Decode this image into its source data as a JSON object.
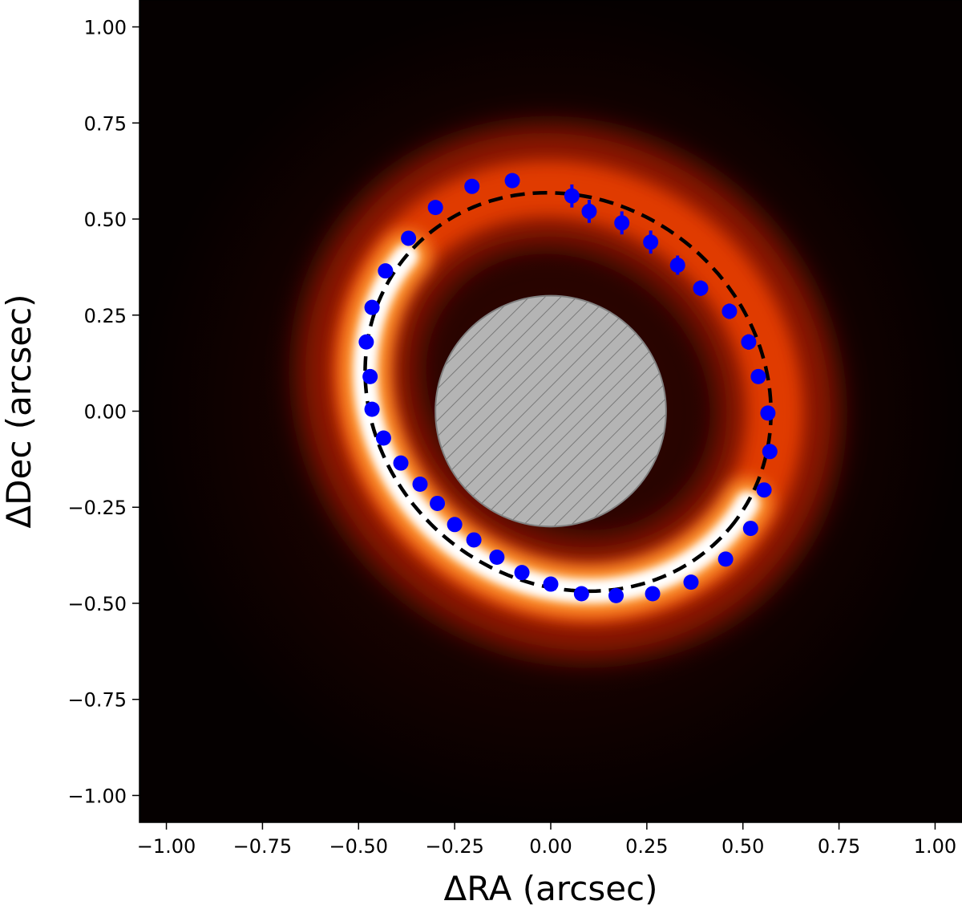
{
  "chart_data": {
    "type": "scatter",
    "title": "",
    "xlabel": "ΔRA (arcsec)",
    "ylabel": "ΔDec (arcsec)",
    "xlim": [
      -1.07,
      1.07
    ],
    "ylim": [
      -1.07,
      1.07
    ],
    "xticks": [
      -1.0,
      -0.75,
      -0.5,
      -0.25,
      0.0,
      0.25,
      0.5,
      0.75,
      1.0
    ],
    "yticks": [
      -1.0,
      -0.75,
      -0.5,
      -0.25,
      0.0,
      0.25,
      0.5,
      0.75,
      1.0
    ],
    "xtick_labels": [
      "−1.00",
      "−0.75",
      "−0.50",
      "−0.25",
      "0.00",
      "0.25",
      "0.50",
      "0.75",
      "1.00"
    ],
    "ytick_labels": [
      "−1.00",
      "−0.75",
      "−0.50",
      "−0.25",
      "0.00",
      "0.25",
      "0.50",
      "0.75",
      "1.00"
    ],
    "grid": false,
    "legend": "none",
    "background": "disk intensity image (black → red → orange → white)",
    "mask": {
      "shape": "circle",
      "center": [
        0.0,
        0.0
      ],
      "radius": 0.3,
      "fill": "#b4b4b4",
      "pattern": "hatched"
    },
    "ellipse_fit": {
      "style": "dashed",
      "color": "#000000",
      "center": [
        0.045,
        0.05
      ],
      "semi_major": 0.55,
      "semi_minor": 0.495,
      "pa_deg": -40
    },
    "series": [
      {
        "marker_color": "#0000ff",
        "points": [
          {
            "x": -0.1,
            "y": 0.6,
            "yerr": 0.01
          },
          {
            "x": -0.205,
            "y": 0.585,
            "yerr": 0.01
          },
          {
            "x": -0.3,
            "y": 0.53,
            "yerr": 0.01
          },
          {
            "x": -0.37,
            "y": 0.45,
            "yerr": 0.01
          },
          {
            "x": -0.43,
            "y": 0.365,
            "yerr": 0.01
          },
          {
            "x": -0.465,
            "y": 0.27,
            "yerr": 0.01
          },
          {
            "x": -0.48,
            "y": 0.18,
            "yerr": 0.01
          },
          {
            "x": -0.47,
            "y": 0.09,
            "yerr": 0.01
          },
          {
            "x": -0.465,
            "y": 0.005,
            "yerr": 0.01
          },
          {
            "x": -0.435,
            "y": -0.07,
            "yerr": 0.01
          },
          {
            "x": -0.39,
            "y": -0.135,
            "yerr": 0.01
          },
          {
            "x": -0.34,
            "y": -0.19,
            "yerr": 0.01
          },
          {
            "x": -0.295,
            "y": -0.24,
            "yerr": 0.01
          },
          {
            "x": -0.25,
            "y": -0.295,
            "yerr": 0.01
          },
          {
            "x": -0.2,
            "y": -0.335,
            "yerr": 0.01
          },
          {
            "x": -0.14,
            "y": -0.38,
            "yerr": 0.01
          },
          {
            "x": -0.075,
            "y": -0.42,
            "yerr": 0.01
          },
          {
            "x": 0.0,
            "y": -0.45,
            "yerr": 0.01
          },
          {
            "x": 0.08,
            "y": -0.475,
            "yerr": 0.01
          },
          {
            "x": 0.17,
            "y": -0.48,
            "yerr": 0.01
          },
          {
            "x": 0.265,
            "y": -0.475,
            "yerr": 0.01
          },
          {
            "x": 0.365,
            "y": -0.445,
            "yerr": 0.01
          },
          {
            "x": 0.455,
            "y": -0.385,
            "yerr": 0.01
          },
          {
            "x": 0.52,
            "y": -0.305,
            "yerr": 0.01
          },
          {
            "x": 0.555,
            "y": -0.205,
            "yerr": 0.01
          },
          {
            "x": 0.57,
            "y": -0.105,
            "yerr": 0.01
          },
          {
            "x": 0.565,
            "y": -0.005,
            "yerr": 0.015
          },
          {
            "x": 0.54,
            "y": 0.09,
            "yerr": 0.015
          },
          {
            "x": 0.515,
            "y": 0.18,
            "yerr": 0.02
          },
          {
            "x": 0.465,
            "y": 0.26,
            "yerr": 0.02
          },
          {
            "x": 0.39,
            "y": 0.32,
            "yerr": 0.02
          },
          {
            "x": 0.33,
            "y": 0.38,
            "yerr": 0.025
          },
          {
            "x": 0.26,
            "y": 0.44,
            "yerr": 0.03
          },
          {
            "x": 0.185,
            "y": 0.49,
            "yerr": 0.03
          },
          {
            "x": 0.1,
            "y": 0.52,
            "yerr": 0.03
          },
          {
            "x": 0.055,
            "y": 0.56,
            "yerr": 0.03
          }
        ]
      }
    ]
  }
}
